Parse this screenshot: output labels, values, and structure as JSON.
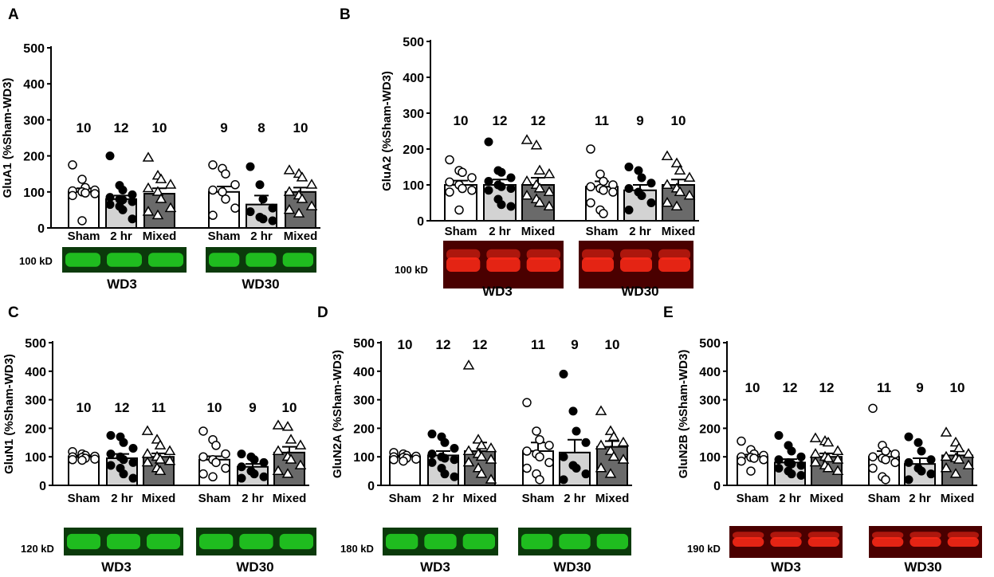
{
  "colors": {
    "sham": "#ffffff",
    "two_hr": "#d3d3d3",
    "mixed": "#6a6a6a",
    "green_bg": "#0b3a0b",
    "green_band": "#23d323",
    "red_bg": "#4a0000",
    "red_band": "#ff2a18",
    "blot_bg_dark": "#1a0000"
  },
  "chart_data": [
    {
      "panel": "A",
      "type": "bar",
      "ylabel": "GluA1 (%Sham-WD3)",
      "ylim": [
        0,
        500
      ],
      "yticks": [
        0,
        100,
        200,
        300,
        400,
        500
      ],
      "categories": [
        "Sham",
        "2 hr",
        "Mixed",
        "Sham",
        "2 hr",
        "Mixed"
      ],
      "groups": [
        "WD3",
        "WD30"
      ],
      "series": [
        {
          "name": "Sham",
          "group": "WD3",
          "mean": 100,
          "sem": 10,
          "n": "10",
          "points": [
            175,
            135,
            112,
            105,
            103,
            100,
            97,
            95,
            90,
            20
          ]
        },
        {
          "name": "2 hr",
          "group": "WD3",
          "mean": 80,
          "sem": 10,
          "n": "12",
          "points": [
            200,
            118,
            105,
            92,
            85,
            80,
            78,
            73,
            65,
            60,
            50,
            25
          ]
        },
        {
          "name": "Mixed",
          "group": "WD3",
          "mean": 95,
          "sem": 15,
          "n": "10",
          "points": [
            195,
            145,
            135,
            120,
            110,
            100,
            80,
            55,
            45,
            35
          ]
        },
        {
          "name": "Sham",
          "group": "WD30",
          "mean": 100,
          "sem": 15,
          "n": "9",
          "points": [
            175,
            165,
            150,
            120,
            105,
            100,
            80,
            55,
            35
          ]
        },
        {
          "name": "2 hr",
          "group": "WD30",
          "mean": 65,
          "sem": 25,
          "n": "8",
          "points": [
            170,
            120,
            80,
            55,
            45,
            30,
            25,
            20
          ]
        },
        {
          "name": "Mixed",
          "group": "WD30",
          "mean": 100,
          "sem": 12,
          "n": "10",
          "points": [
            160,
            150,
            140,
            120,
            100,
            90,
            80,
            60,
            50,
            40
          ]
        }
      ],
      "blot_label": "100 kD",
      "blot_color": "green"
    },
    {
      "panel": "B",
      "type": "bar",
      "ylabel": "GluA2 (%Sham-WD3)",
      "ylim": [
        0,
        500
      ],
      "yticks": [
        0,
        100,
        200,
        300,
        400,
        500
      ],
      "categories": [
        "Sham",
        "2 hr",
        "Mixed",
        "Sham",
        "2 hr",
        "Mixed"
      ],
      "groups": [
        "WD3",
        "WD30"
      ],
      "series": [
        {
          "name": "Sham",
          "group": "WD3",
          "mean": 100,
          "sem": 12,
          "n": "10",
          "points": [
            170,
            140,
            135,
            120,
            108,
            100,
            90,
            85,
            80,
            30
          ]
        },
        {
          "name": "2 hr",
          "group": "WD3",
          "mean": 100,
          "sem": 15,
          "n": "12",
          "points": [
            220,
            140,
            135,
            120,
            110,
            100,
            95,
            90,
            85,
            60,
            45,
            40
          ]
        },
        {
          "name": "Mixed",
          "group": "WD3",
          "mean": 100,
          "sem": 20,
          "n": "12",
          "points": [
            225,
            210,
            140,
            130,
            110,
            100,
            90,
            80,
            70,
            60,
            50,
            40
          ]
        },
        {
          "name": "Sham",
          "group": "WD30",
          "mean": 95,
          "sem": 15,
          "n": "11",
          "points": [
            200,
            130,
            110,
            100,
            95,
            90,
            85,
            80,
            50,
            30,
            20
          ]
        },
        {
          "name": "2 hr",
          "group": "WD30",
          "mean": 85,
          "sem": 15,
          "n": "9",
          "points": [
            150,
            140,
            120,
            105,
            90,
            80,
            70,
            50,
            30
          ]
        },
        {
          "name": "Mixed",
          "group": "WD30",
          "mean": 100,
          "sem": 15,
          "n": "10",
          "points": [
            180,
            160,
            140,
            120,
            100,
            90,
            80,
            70,
            50,
            40
          ]
        }
      ],
      "blot_label": "100 kD",
      "blot_color": "red"
    },
    {
      "panel": "C",
      "type": "bar",
      "ylabel": "GluN1 (%Sham-WD3)",
      "ylim": [
        0,
        500
      ],
      "yticks": [
        0,
        100,
        200,
        300,
        400,
        500
      ],
      "categories": [
        "Sham",
        "2 hr",
        "Mixed",
        "Sham",
        "2 hr",
        "Mixed"
      ],
      "groups": [
        "WD3",
        "WD30"
      ],
      "series": [
        {
          "name": "Sham",
          "group": "WD3",
          "mean": 100,
          "sem": 5,
          "n": "10",
          "points": [
            118,
            110,
            105,
            102,
            100,
            98,
            95,
            92,
            90,
            88
          ]
        },
        {
          "name": "2 hr",
          "group": "WD3",
          "mean": 95,
          "sem": 15,
          "n": "12",
          "points": [
            175,
            170,
            150,
            130,
            110,
            100,
            90,
            80,
            70,
            60,
            40,
            25
          ]
        },
        {
          "name": "Mixed",
          "group": "WD3",
          "mean": 100,
          "sem": 12,
          "n": "11",
          "points": [
            190,
            160,
            140,
            120,
            110,
            100,
            90,
            85,
            80,
            60,
            50
          ]
        },
        {
          "name": "Sham",
          "group": "WD30",
          "mean": 90,
          "sem": 12,
          "n": "10",
          "points": [
            190,
            160,
            140,
            110,
            100,
            90,
            80,
            60,
            40,
            30
          ]
        },
        {
          "name": "2 hr",
          "group": "WD30",
          "mean": 65,
          "sem": 10,
          "n": "9",
          "points": [
            110,
            100,
            90,
            80,
            65,
            50,
            40,
            30,
            25
          ]
        },
        {
          "name": "Mixed",
          "group": "WD30",
          "mean": 115,
          "sem": 20,
          "n": "10",
          "points": [
            210,
            205,
            160,
            140,
            120,
            100,
            90,
            70,
            50,
            40
          ]
        }
      ],
      "blot_label": "120 kD",
      "blot_color": "green"
    },
    {
      "panel": "D",
      "type": "bar",
      "ylabel": "GluN2A (%Sham-WD3)",
      "ylim": [
        0,
        500
      ],
      "yticks": [
        0,
        100,
        200,
        300,
        400,
        500
      ],
      "categories": [
        "Sham",
        "2 hr",
        "Mixed",
        "Sham",
        "2 hr",
        "Mixed"
      ],
      "groups": [
        "WD3",
        "WD30"
      ],
      "series": [
        {
          "name": "Sham",
          "group": "WD3",
          "mean": 100,
          "sem": 5,
          "n": "10",
          "points": [
            115,
            110,
            105,
            102,
            100,
            98,
            95,
            92,
            90,
            85
          ]
        },
        {
          "name": "2 hr",
          "group": "WD3",
          "mean": 105,
          "sem": 15,
          "n": "12",
          "points": [
            180,
            170,
            150,
            130,
            110,
            100,
            95,
            90,
            80,
            60,
            40,
            30
          ]
        },
        {
          "name": "Mixed",
          "group": "WD3",
          "mean": 120,
          "sem": 30,
          "n": "12",
          "points": [
            420,
            160,
            140,
            130,
            120,
            110,
            100,
            90,
            80,
            60,
            40,
            20
          ]
        },
        {
          "name": "Sham",
          "group": "WD30",
          "mean": 120,
          "sem": 30,
          "n": "11",
          "points": [
            290,
            190,
            160,
            140,
            120,
            110,
            100,
            80,
            60,
            40,
            20
          ]
        },
        {
          "name": "2 hr",
          "group": "WD30",
          "mean": 115,
          "sem": 45,
          "n": "9",
          "points": [
            390,
            260,
            190,
            150,
            100,
            70,
            60,
            40,
            20
          ]
        },
        {
          "name": "Mixed",
          "group": "WD30",
          "mean": 135,
          "sem": 20,
          "n": "10",
          "points": [
            260,
            190,
            170,
            150,
            140,
            120,
            100,
            90,
            60,
            40
          ]
        }
      ],
      "blot_label": "180 kD",
      "blot_color": "green"
    },
    {
      "panel": "E",
      "type": "bar",
      "ylabel": "GluN2B (%Sham-WD3)",
      "ylim": [
        0,
        500
      ],
      "yticks": [
        0,
        100,
        200,
        300,
        400,
        500
      ],
      "categories": [
        "Sham",
        "2 hr",
        "Mixed",
        "Sham",
        "2 hr",
        "Mixed"
      ],
      "groups": [
        "WD3",
        "WD30"
      ],
      "series": [
        {
          "name": "Sham",
          "group": "WD3",
          "mean": 100,
          "sem": 8,
          "n": "10",
          "points": [
            155,
            125,
            110,
            105,
            100,
            98,
            95,
            90,
            85,
            50
          ]
        },
        {
          "name": "2 hr",
          "group": "WD3",
          "mean": 80,
          "sem": 12,
          "n": "12",
          "points": [
            175,
            140,
            120,
            100,
            90,
            80,
            75,
            70,
            60,
            50,
            40,
            35
          ]
        },
        {
          "name": "Mixed",
          "group": "WD3",
          "mean": 100,
          "sem": 12,
          "n": "12",
          "points": [
            165,
            155,
            150,
            120,
            110,
            100,
            95,
            90,
            80,
            70,
            60,
            50
          ]
        },
        {
          "name": "Sham",
          "group": "WD30",
          "mean": 100,
          "sem": 20,
          "n": "11",
          "points": [
            270,
            140,
            120,
            110,
            100,
            95,
            90,
            80,
            60,
            30,
            20
          ]
        },
        {
          "name": "2 hr",
          "group": "WD30",
          "mean": 75,
          "sem": 20,
          "n": "9",
          "points": [
            170,
            150,
            120,
            90,
            80,
            60,
            50,
            40,
            20
          ]
        },
        {
          "name": "Mixed",
          "group": "WD30",
          "mean": 105,
          "sem": 15,
          "n": "10",
          "points": [
            185,
            150,
            130,
            110,
            100,
            95,
            90,
            70,
            60,
            40
          ]
        }
      ],
      "blot_label": "190 kD",
      "blot_color": "red"
    }
  ]
}
